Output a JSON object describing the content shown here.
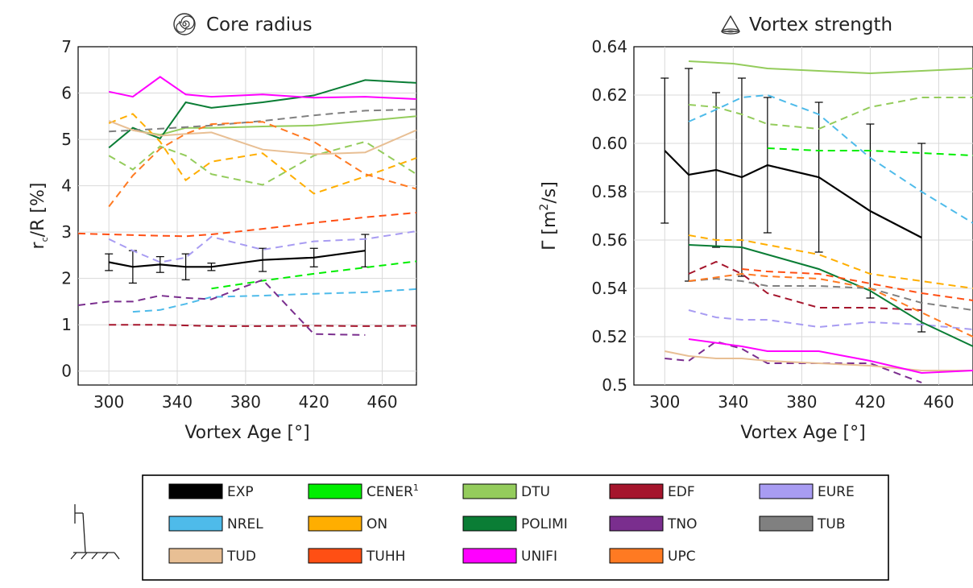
{
  "chart_data": [
    {
      "type": "line",
      "title": "Core radius",
      "title_icon": "spiral-icon",
      "xlabel": "Vortex Age [°]",
      "ylabel": "r_c/R [%]",
      "ylabel_main": "r",
      "ylabel_sub": "c",
      "ylabel_rest": "/R [%]",
      "xlim": [
        282,
        480
      ],
      "ylim": [
        -0.3,
        7
      ],
      "xticks": [
        300,
        340,
        380,
        420,
        460
      ],
      "xtick_labels": [
        "300",
        "340",
        "380",
        "420",
        "460"
      ],
      "yticks": [
        0,
        1,
        2,
        3,
        4,
        5,
        6,
        7
      ],
      "ytick_labels": [
        "0",
        "1",
        "2",
        "3",
        "4",
        "5",
        "6",
        "7"
      ],
      "grid": true,
      "series": [
        {
          "name": "EXP",
          "x": [
            300,
            314,
            330,
            345,
            360,
            390,
            420,
            450
          ],
          "y": [
            2.35,
            2.25,
            2.3,
            2.25,
            2.25,
            2.4,
            2.45,
            2.6
          ],
          "err": [
            0.18,
            0.35,
            0.17,
            0.28,
            0.08,
            0.25,
            0.2,
            0.35
          ]
        },
        {
          "name": "CENER",
          "x": [
            360,
            390,
            420,
            480
          ],
          "y": [
            1.78,
            1.95,
            2.1,
            2.37
          ]
        },
        {
          "name": "DTU",
          "x": [
            314,
            330,
            345,
            360,
            390,
            420,
            450,
            480
          ],
          "y": [
            5.2,
            5.1,
            5.25,
            5.25,
            5.28,
            5.3,
            5.4,
            5.5
          ]
        },
        {
          "name": "DTU",
          "x": [
            300,
            314,
            330,
            345,
            360,
            390,
            420,
            450,
            480
          ],
          "y": [
            4.65,
            4.35,
            4.85,
            4.65,
            4.25,
            4.02,
            4.65,
            4.95,
            4.25
          ]
        },
        {
          "name": "EDF",
          "x": [
            300,
            330,
            360,
            390,
            420,
            450,
            480
          ],
          "y": [
            1.0,
            1.0,
            0.97,
            0.97,
            0.98,
            0.97,
            0.98
          ]
        },
        {
          "name": "EURE",
          "x": [
            300,
            314,
            330,
            345,
            360,
            390,
            420,
            450,
            480
          ],
          "y": [
            2.85,
            2.6,
            2.35,
            2.45,
            2.9,
            2.62,
            2.8,
            2.85,
            3.02
          ]
        },
        {
          "name": "NREL",
          "x": [
            314,
            330,
            345,
            360,
            390,
            420,
            450,
            480
          ],
          "y": [
            1.28,
            1.32,
            1.45,
            1.6,
            1.63,
            1.67,
            1.7,
            1.77
          ]
        },
        {
          "name": "ON",
          "x": [
            300,
            314,
            330,
            345,
            360,
            390,
            420,
            450,
            480
          ],
          "y": [
            5.35,
            5.55,
            4.95,
            4.12,
            4.52,
            4.7,
            3.83,
            4.2,
            4.6
          ]
        },
        {
          "name": "POLIMI",
          "x": [
            300,
            314,
            330,
            345,
            360,
            390,
            420,
            450,
            480
          ],
          "y": [
            4.82,
            5.25,
            5.02,
            5.8,
            5.68,
            5.8,
            5.95,
            6.28,
            6.22
          ]
        },
        {
          "name": "TNO",
          "x": [
            282,
            300,
            314,
            330,
            345,
            360,
            390,
            420,
            450
          ],
          "y": [
            1.42,
            1.5,
            1.5,
            1.63,
            1.58,
            1.55,
            1.97,
            0.8,
            0.78
          ]
        },
        {
          "name": "TUB",
          "x": [
            300,
            330,
            360,
            390,
            420,
            450,
            480
          ],
          "y": [
            5.17,
            5.23,
            5.3,
            5.4,
            5.52,
            5.62,
            5.65
          ]
        },
        {
          "name": "TUD",
          "x": [
            300,
            314,
            330,
            345,
            360,
            390,
            420,
            450,
            480
          ],
          "y": [
            5.4,
            5.2,
            5.08,
            5.12,
            5.15,
            4.78,
            4.68,
            4.72,
            5.2
          ]
        },
        {
          "name": "TUHH",
          "x": [
            282,
            300,
            330,
            345,
            360,
            390,
            420,
            450,
            480
          ],
          "y": [
            2.97,
            2.95,
            2.92,
            2.91,
            2.95,
            3.07,
            3.2,
            3.32,
            3.42
          ]
        },
        {
          "name": "UNIFI",
          "x": [
            300,
            314,
            330,
            345,
            360,
            390,
            420,
            450,
            480
          ],
          "y": [
            6.03,
            5.92,
            6.35,
            5.97,
            5.92,
            5.97,
            5.9,
            5.92,
            5.87
          ]
        },
        {
          "name": "UPC",
          "x": [
            300,
            314,
            330,
            345,
            360,
            390,
            420,
            450,
            480
          ],
          "y": [
            3.55,
            4.22,
            4.8,
            5.12,
            5.33,
            5.38,
            4.95,
            4.25,
            3.93
          ]
        }
      ]
    },
    {
      "type": "line",
      "title": "Vortex strength",
      "title_icon": "vortex-cone-icon",
      "xlabel": "Vortex Age [°]",
      "ylabel": "Γ [m²/s]",
      "ylabel_pre": "Γ [m",
      "ylabel_sup": "2",
      "ylabel_post": "/s]",
      "xlim": [
        282,
        480
      ],
      "ylim": [
        0.5,
        0.64
      ],
      "xticks": [
        300,
        340,
        380,
        420,
        460
      ],
      "xtick_labels": [
        "300",
        "340",
        "380",
        "420",
        "460"
      ],
      "yticks": [
        0.5,
        0.52,
        0.54,
        0.56,
        0.58,
        0.6,
        0.62,
        0.64
      ],
      "ytick_labels": [
        "0.5",
        "0.52",
        "0.54",
        "0.56",
        "0.58",
        "0.60",
        "0.62",
        "0.64"
      ],
      "grid": true,
      "series": [
        {
          "name": "EXP",
          "x": [
            300,
            314,
            330,
            345,
            360,
            390,
            420,
            450
          ],
          "y": [
            0.597,
            0.587,
            0.589,
            0.586,
            0.591,
            0.586,
            0.572,
            0.561
          ],
          "err": [
            0.03,
            0.044,
            0.032,
            0.041,
            0.028,
            0.031,
            0.036,
            0.039
          ]
        },
        {
          "name": "CENER",
          "x": [
            360,
            390,
            420,
            480
          ],
          "y": [
            0.598,
            0.597,
            0.597,
            0.595
          ]
        },
        {
          "name": "DTU",
          "x": [
            314,
            340,
            360,
            390,
            420,
            450,
            480
          ],
          "y": [
            0.634,
            0.633,
            0.631,
            0.63,
            0.629,
            0.63,
            0.631
          ]
        },
        {
          "name": "DTU",
          "x": [
            314,
            330,
            345,
            360,
            390,
            420,
            450,
            480
          ],
          "y": [
            0.616,
            0.615,
            0.612,
            0.608,
            0.606,
            0.615,
            0.619,
            0.619
          ]
        },
        {
          "name": "EDF",
          "x": [
            314,
            330,
            345,
            360,
            390,
            420,
            450
          ],
          "y": [
            0.546,
            0.551,
            0.546,
            0.538,
            0.532,
            0.532,
            0.531
          ]
        },
        {
          "name": "EURE",
          "x": [
            314,
            330,
            345,
            360,
            390,
            420,
            450,
            480
          ],
          "y": [
            0.531,
            0.528,
            0.527,
            0.527,
            0.524,
            0.526,
            0.525,
            0.523
          ]
        },
        {
          "name": "NREL",
          "x": [
            314,
            330,
            345,
            360,
            390,
            420,
            450,
            480
          ],
          "y": [
            0.609,
            0.614,
            0.619,
            0.62,
            0.612,
            0.594,
            0.58,
            0.567
          ]
        },
        {
          "name": "ON",
          "x": [
            314,
            330,
            345,
            360,
            390,
            420,
            450,
            480
          ],
          "y": [
            0.562,
            0.56,
            0.56,
            0.558,
            0.554,
            0.546,
            0.543,
            0.54
          ]
        },
        {
          "name": "POLIMI",
          "x": [
            314,
            345,
            360,
            390,
            420,
            450,
            480
          ],
          "y": [
            0.558,
            0.557,
            0.554,
            0.548,
            0.539,
            0.526,
            0.516
          ]
        },
        {
          "name": "TNO",
          "x": [
            300,
            314,
            330,
            345,
            360,
            390,
            420,
            450
          ],
          "y": [
            0.511,
            0.51,
            0.518,
            0.515,
            0.509,
            0.509,
            0.509,
            0.501
          ]
        },
        {
          "name": "TUB",
          "x": [
            314,
            330,
            345,
            360,
            390,
            420,
            450,
            480
          ],
          "y": [
            0.543,
            0.544,
            0.543,
            0.541,
            0.541,
            0.54,
            0.534,
            0.531
          ]
        },
        {
          "name": "TUD",
          "x": [
            300,
            314,
            330,
            345,
            360,
            390,
            420,
            450,
            480
          ],
          "y": [
            0.514,
            0.512,
            0.511,
            0.511,
            0.51,
            0.509,
            0.508,
            0.506,
            0.506
          ]
        },
        {
          "name": "TUHH",
          "x": [
            345,
            360,
            390,
            420,
            450,
            480
          ],
          "y": [
            0.548,
            0.547,
            0.546,
            0.542,
            0.538,
            0.535
          ]
        },
        {
          "name": "UNIFI",
          "x": [
            314,
            345,
            360,
            390,
            420,
            450,
            480
          ],
          "y": [
            0.519,
            0.516,
            0.514,
            0.514,
            0.51,
            0.505,
            0.506
          ]
        },
        {
          "name": "UPC",
          "x": [
            314,
            345,
            360,
            390,
            420,
            450,
            480
          ],
          "y": [
            0.543,
            0.546,
            0.545,
            0.544,
            0.54,
            0.53,
            0.52
          ]
        }
      ]
    }
  ],
  "legend": {
    "entries": [
      {
        "key": "EXP",
        "label": "EXP",
        "sup": ""
      },
      {
        "key": "CENER",
        "label": "CENER",
        "sup": "1"
      },
      {
        "key": "DTU",
        "label": "DTU",
        "sup": ""
      },
      {
        "key": "EDF",
        "label": "EDF",
        "sup": ""
      },
      {
        "key": "EURE",
        "label": "EURE",
        "sup": ""
      },
      {
        "key": "NREL",
        "label": "NREL",
        "sup": ""
      },
      {
        "key": "ON",
        "label": "ON",
        "sup": ""
      },
      {
        "key": "POLIMI",
        "label": "POLIMI",
        "sup": ""
      },
      {
        "key": "TNO",
        "label": "TNO",
        "sup": ""
      },
      {
        "key": "TUB",
        "label": "TUB",
        "sup": ""
      },
      {
        "key": "TUD",
        "label": "TUD",
        "sup": ""
      },
      {
        "key": "TUHH",
        "label": "TUHH",
        "sup": ""
      },
      {
        "key": "UNIFI",
        "label": "UNIFI",
        "sup": ""
      },
      {
        "key": "UPC",
        "label": "UPC",
        "sup": ""
      }
    ],
    "side_icon": "wind-turbine-ground-icon"
  },
  "colors": {
    "EXP": "#000000",
    "CENER": "#00ee00",
    "DTU": "#94cc5c",
    "EDF": "#a5152c",
    "EURE": "#a89cf2",
    "NREL": "#4ebbea",
    "ON": "#ffae00",
    "POLIMI": "#0a7d35",
    "TNO": "#7a2e8e",
    "TUB": "#808080",
    "TUD": "#e8bf94",
    "TUHH": "#ff4f14",
    "UNIFI": "#ff00ff",
    "UPC": "#ff7a22"
  }
}
